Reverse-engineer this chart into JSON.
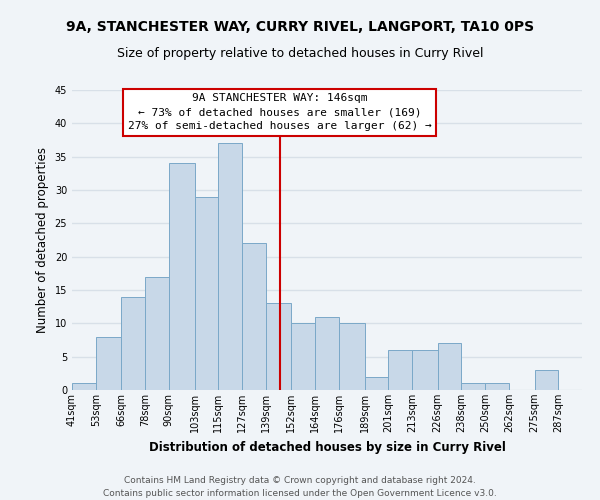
{
  "title": "9A, STANCHESTER WAY, CURRY RIVEL, LANGPORT, TA10 0PS",
  "subtitle": "Size of property relative to detached houses in Curry Rivel",
  "xlabel": "Distribution of detached houses by size in Curry Rivel",
  "ylabel": "Number of detached properties",
  "bin_labels": [
    "41sqm",
    "53sqm",
    "66sqm",
    "78sqm",
    "90sqm",
    "103sqm",
    "115sqm",
    "127sqm",
    "139sqm",
    "152sqm",
    "164sqm",
    "176sqm",
    "189sqm",
    "201sqm",
    "213sqm",
    "226sqm",
    "238sqm",
    "250sqm",
    "262sqm",
    "275sqm",
    "287sqm"
  ],
  "bin_edges": [
    41,
    53,
    66,
    78,
    90,
    103,
    115,
    127,
    139,
    152,
    164,
    176,
    189,
    201,
    213,
    226,
    238,
    250,
    262,
    275,
    287,
    299
  ],
  "counts": [
    1,
    8,
    14,
    17,
    34,
    29,
    37,
    22,
    13,
    10,
    11,
    10,
    2,
    6,
    6,
    7,
    1,
    1,
    0,
    3,
    0
  ],
  "bar_color": "#c8d8e8",
  "bar_edgecolor": "#7aa8c8",
  "vline_x": 146,
  "vline_color": "#cc0000",
  "annotation_title": "9A STANCHESTER WAY: 146sqm",
  "annotation_line1": "← 73% of detached houses are smaller (169)",
  "annotation_line2": "27% of semi-detached houses are larger (62) →",
  "annotation_box_color": "#ffffff",
  "annotation_box_edgecolor": "#cc0000",
  "ylim": [
    0,
    45
  ],
  "yticks": [
    0,
    5,
    10,
    15,
    20,
    25,
    30,
    35,
    40,
    45
  ],
  "footer_line1": "Contains HM Land Registry data © Crown copyright and database right 2024.",
  "footer_line2": "Contains public sector information licensed under the Open Government Licence v3.0.",
  "background_color": "#f0f4f8",
  "grid_color": "#d8e0e8",
  "title_fontsize": 10,
  "subtitle_fontsize": 9,
  "axis_label_fontsize": 8.5,
  "tick_fontsize": 7,
  "footer_fontsize": 6.5,
  "annotation_fontsize": 8
}
